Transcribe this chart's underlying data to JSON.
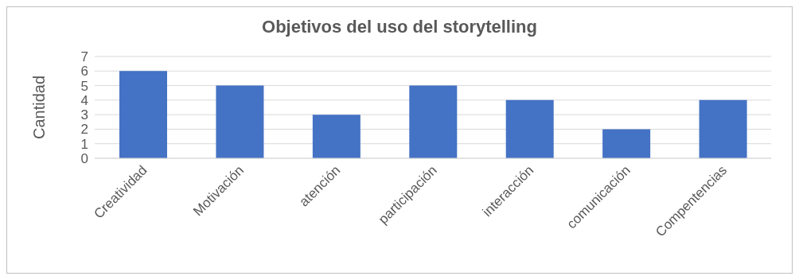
{
  "chart_data": {
    "type": "bar",
    "title": "Objetivos del uso del storytelling",
    "ylabel": "Cantidad",
    "categories": [
      "Creatividad",
      "Motivación",
      "atención",
      "participación",
      "interacción",
      "comunicación",
      "Compentencias"
    ],
    "values": [
      6,
      5,
      3,
      5,
      4,
      2,
      4
    ],
    "color": "#4472c4",
    "ylim": [
      0,
      7
    ],
    "yticks": [
      0,
      1,
      2,
      3,
      4,
      5,
      6,
      7
    ],
    "grid": "y"
  }
}
